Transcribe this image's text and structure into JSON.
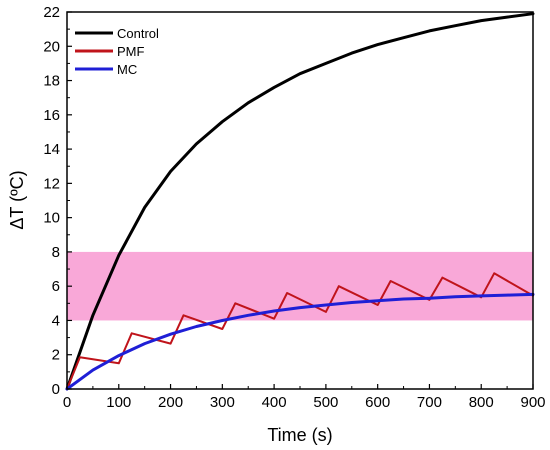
{
  "chart_data": {
    "type": "line",
    "title": "",
    "xlabel": "Time (s)",
    "ylabel": "ΔT (ºC)",
    "xlim": [
      0,
      900
    ],
    "ylim": [
      0,
      22
    ],
    "xticks": [
      0,
      100,
      200,
      300,
      400,
      500,
      600,
      700,
      800,
      900
    ],
    "yticks": [
      0,
      2,
      4,
      6,
      8,
      10,
      12,
      14,
      16,
      18,
      20,
      22
    ],
    "grid": false,
    "legend_position": "top-left",
    "shaded_band": {
      "y_from": 4,
      "y_to": 8,
      "color": "#f9a8d8"
    },
    "series": [
      {
        "name": "Control",
        "color": "#000000",
        "x": [
          0,
          50,
          100,
          150,
          200,
          250,
          300,
          350,
          400,
          450,
          500,
          550,
          600,
          650,
          700,
          750,
          800,
          850,
          900
        ],
        "y": [
          0,
          4.3,
          7.8,
          10.6,
          12.7,
          14.3,
          15.6,
          16.7,
          17.6,
          18.4,
          19.0,
          19.6,
          20.1,
          20.5,
          20.9,
          21.2,
          21.5,
          21.7,
          21.9
        ]
      },
      {
        "name": "PMF",
        "color": "#c0141b",
        "x": [
          0,
          25,
          100,
          125,
          200,
          225,
          300,
          325,
          400,
          425,
          500,
          525,
          600,
          625,
          700,
          725,
          800,
          825,
          900
        ],
        "y": [
          0,
          1.85,
          1.5,
          3.25,
          2.65,
          4.3,
          3.5,
          5.0,
          4.1,
          5.6,
          4.5,
          6.0,
          4.9,
          6.3,
          5.2,
          6.5,
          5.35,
          6.75,
          5.45
        ]
      },
      {
        "name": "MC",
        "color": "#1f1fd6",
        "x": [
          0,
          50,
          100,
          150,
          200,
          250,
          300,
          350,
          400,
          450,
          500,
          550,
          600,
          650,
          700,
          750,
          800,
          850,
          900
        ],
        "y": [
          0,
          1.1,
          1.95,
          2.65,
          3.2,
          3.65,
          4.0,
          4.3,
          4.55,
          4.75,
          4.9,
          5.05,
          5.15,
          5.25,
          5.3,
          5.38,
          5.43,
          5.48,
          5.52
        ]
      }
    ]
  }
}
